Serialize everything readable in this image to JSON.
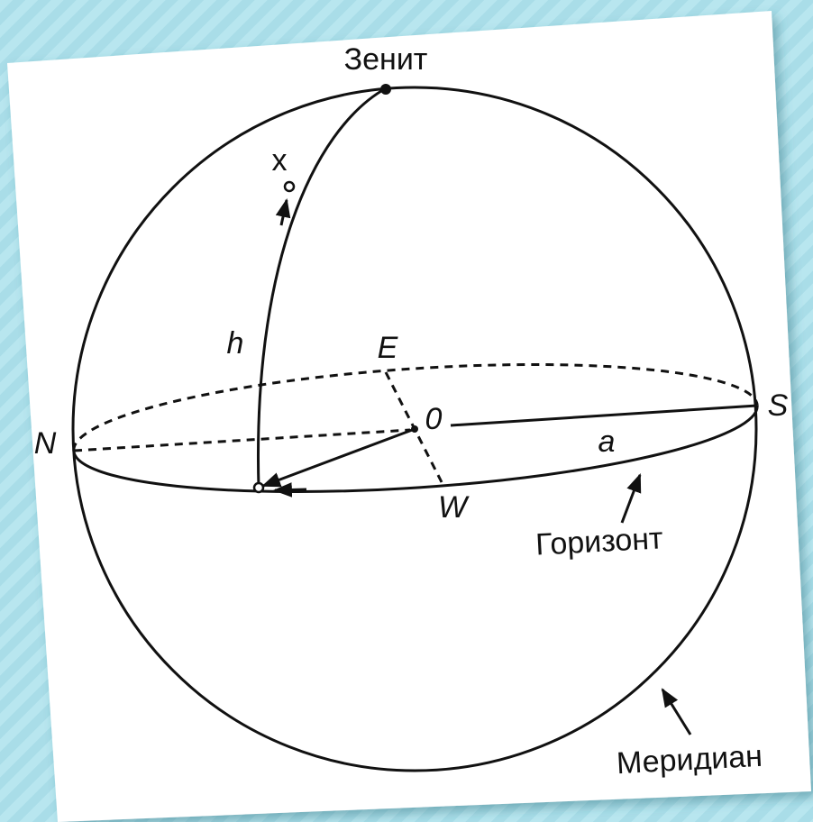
{
  "labels": {
    "zenith": "Зенит",
    "star": "x",
    "altitude": "h",
    "east": "E",
    "center": "0",
    "south": "S",
    "north": "N",
    "azimuth": "a",
    "west": "W",
    "horizon": "Горизонт",
    "meridian": "Меридиан"
  }
}
